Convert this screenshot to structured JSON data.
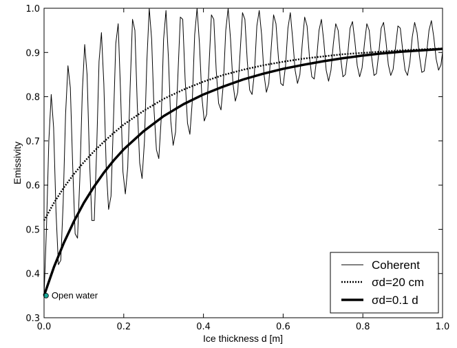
{
  "chart_data": {
    "type": "line",
    "xlabel": "Ice thickness d [m]",
    "ylabel": "Emissivity",
    "xlim": [
      0.0,
      1.0
    ],
    "ylim": [
      0.3,
      1.0
    ],
    "xticks": [
      0.0,
      0.2,
      0.4,
      0.6,
      0.8,
      1.0
    ],
    "xtick_labels": [
      "0.0",
      "0.2",
      "0.4",
      "0.6",
      "0.8",
      "1.0"
    ],
    "yticks": [
      0.3,
      0.4,
      0.5,
      0.6,
      0.7,
      0.8,
      0.9,
      1.0
    ],
    "ytick_labels": [
      "0.3",
      "0.4",
      "0.5",
      "0.6",
      "0.7",
      "0.8",
      "0.9",
      "1.0"
    ],
    "grid": false,
    "legend_position": "bottom-right",
    "series": [
      {
        "name": "Coherent",
        "style": "thin-solid",
        "color": "#000000",
        "x": [
          0.0,
          0.006,
          0.012,
          0.018,
          0.024,
          0.03,
          0.036,
          0.042,
          0.048,
          0.054,
          0.06,
          0.066,
          0.072,
          0.078,
          0.084,
          0.09,
          0.096,
          0.102,
          0.108,
          0.114,
          0.12,
          0.126,
          0.132,
          0.138,
          0.144,
          0.15,
          0.156,
          0.162,
          0.168,
          0.174,
          0.18,
          0.186,
          0.192,
          0.198,
          0.204,
          0.21,
          0.216,
          0.222,
          0.228,
          0.234,
          0.24,
          0.246,
          0.252,
          0.258,
          0.264,
          0.27,
          0.276,
          0.282,
          0.288,
          0.294,
          0.3,
          0.306,
          0.312,
          0.318,
          0.324,
          0.33,
          0.336,
          0.342,
          0.348,
          0.354,
          0.36,
          0.366,
          0.372,
          0.378,
          0.384,
          0.39,
          0.396,
          0.402,
          0.408,
          0.414,
          0.42,
          0.426,
          0.432,
          0.438,
          0.444,
          0.45,
          0.456,
          0.462,
          0.468,
          0.474,
          0.48,
          0.486,
          0.492,
          0.498,
          0.504,
          0.51,
          0.516,
          0.522,
          0.528,
          0.534,
          0.54,
          0.546,
          0.552,
          0.558,
          0.564,
          0.57,
          0.576,
          0.582,
          0.588,
          0.594,
          0.6,
          0.606,
          0.612,
          0.618,
          0.624,
          0.63,
          0.636,
          0.642,
          0.648,
          0.654,
          0.66,
          0.666,
          0.672,
          0.678,
          0.684,
          0.69,
          0.696,
          0.702,
          0.708,
          0.714,
          0.72,
          0.726,
          0.732,
          0.738,
          0.744,
          0.75,
          0.756,
          0.762,
          0.768,
          0.774,
          0.78,
          0.786,
          0.792,
          0.798,
          0.804,
          0.81,
          0.816,
          0.822,
          0.828,
          0.834,
          0.84,
          0.846,
          0.852,
          0.858,
          0.864,
          0.87,
          0.876,
          0.882,
          0.888,
          0.894,
          0.9,
          0.906,
          0.912,
          0.918,
          0.924,
          0.93,
          0.936,
          0.942,
          0.948,
          0.954,
          0.96,
          0.966,
          0.972,
          0.978,
          0.984,
          0.99,
          0.996,
          1.0
        ],
        "y": [
          0.35,
          0.5,
          0.7,
          0.805,
          0.73,
          0.54,
          0.42,
          0.43,
          0.56,
          0.76,
          0.87,
          0.82,
          0.64,
          0.49,
          0.48,
          0.62,
          0.81,
          0.918,
          0.85,
          0.66,
          0.52,
          0.52,
          0.68,
          0.88,
          0.945,
          0.83,
          0.64,
          0.545,
          0.575,
          0.74,
          0.92,
          0.965,
          0.81,
          0.63,
          0.58,
          0.64,
          0.82,
          0.975,
          0.95,
          0.78,
          0.65,
          0.615,
          0.7,
          0.88,
          1.0,
          0.93,
          0.77,
          0.68,
          0.66,
          0.75,
          0.93,
          0.995,
          0.89,
          0.745,
          0.69,
          0.72,
          0.85,
          0.98,
          0.975,
          0.84,
          0.74,
          0.715,
          0.79,
          0.94,
          1.0,
          0.92,
          0.8,
          0.745,
          0.76,
          0.87,
          0.985,
          0.975,
          0.86,
          0.785,
          0.77,
          0.83,
          0.95,
          1.0,
          0.93,
          0.83,
          0.79,
          0.81,
          0.9,
          0.99,
          0.975,
          0.88,
          0.815,
          0.805,
          0.855,
          0.96,
          0.995,
          0.94,
          0.85,
          0.81,
          0.83,
          0.91,
          0.985,
          0.965,
          0.89,
          0.83,
          0.825,
          0.87,
          0.955,
          0.99,
          0.93,
          0.86,
          0.83,
          0.85,
          0.92,
          0.98,
          0.96,
          0.89,
          0.845,
          0.84,
          0.885,
          0.95,
          0.975,
          0.925,
          0.86,
          0.835,
          0.86,
          0.92,
          0.965,
          0.95,
          0.89,
          0.845,
          0.85,
          0.895,
          0.955,
          0.97,
          0.925,
          0.87,
          0.845,
          0.865,
          0.92,
          0.965,
          0.95,
          0.89,
          0.848,
          0.852,
          0.898,
          0.955,
          0.968,
          0.925,
          0.872,
          0.848,
          0.862,
          0.912,
          0.96,
          0.955,
          0.905,
          0.86,
          0.848,
          0.878,
          0.935,
          0.968,
          0.945,
          0.892,
          0.855,
          0.858,
          0.898,
          0.95,
          0.972,
          0.935,
          0.885,
          0.86,
          0.872,
          0.9
        ]
      },
      {
        "name": "σd=20 cm",
        "style": "dotted",
        "color": "#000000",
        "x": [
          0.0,
          0.025,
          0.05,
          0.075,
          0.1,
          0.125,
          0.15,
          0.175,
          0.2,
          0.25,
          0.3,
          0.35,
          0.4,
          0.45,
          0.5,
          0.55,
          0.6,
          0.65,
          0.7,
          0.75,
          0.8,
          0.85,
          0.9,
          0.95,
          1.0
        ],
        "y": [
          0.52,
          0.56,
          0.595,
          0.625,
          0.652,
          0.676,
          0.698,
          0.718,
          0.737,
          0.768,
          0.795,
          0.816,
          0.834,
          0.849,
          0.861,
          0.871,
          0.879,
          0.886,
          0.891,
          0.896,
          0.899,
          0.902,
          0.905,
          0.907,
          0.909
        ]
      },
      {
        "name": "σd=0.1 d",
        "style": "thick-solid",
        "color": "#000000",
        "x": [
          0.0,
          0.025,
          0.05,
          0.075,
          0.1,
          0.125,
          0.15,
          0.175,
          0.2,
          0.25,
          0.3,
          0.35,
          0.4,
          0.45,
          0.5,
          0.55,
          0.6,
          0.65,
          0.7,
          0.75,
          0.8,
          0.85,
          0.9,
          0.95,
          1.0
        ],
        "y": [
          0.35,
          0.415,
          0.47,
          0.518,
          0.56,
          0.596,
          0.628,
          0.656,
          0.681,
          0.722,
          0.756,
          0.783,
          0.805,
          0.823,
          0.839,
          0.852,
          0.863,
          0.872,
          0.88,
          0.887,
          0.893,
          0.898,
          0.902,
          0.905,
          0.908
        ]
      }
    ],
    "annotations": [
      {
        "text": "Open water",
        "x": 0.005,
        "y": 0.35,
        "marker_color": "#1aa99a"
      }
    ]
  }
}
